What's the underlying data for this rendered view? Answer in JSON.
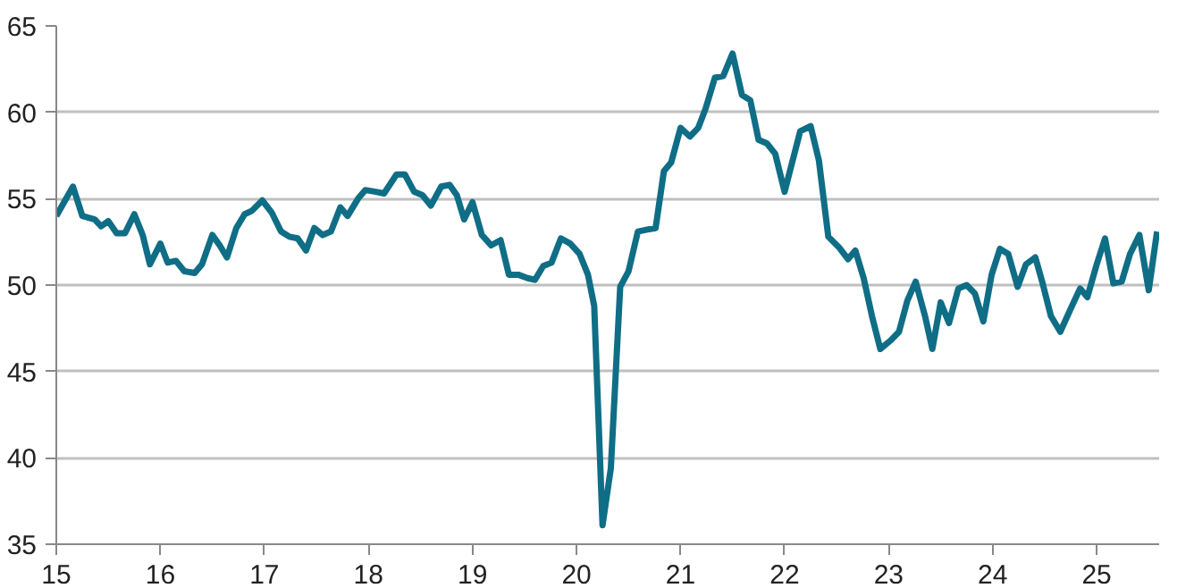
{
  "chart_data": {
    "type": "line",
    "xlim": [
      15,
      25.6
    ],
    "xticks": [
      15,
      16,
      17,
      18,
      19,
      20,
      21,
      22,
      23,
      24,
      25
    ],
    "ylim": [
      35,
      65
    ],
    "yticks": [
      35,
      40,
      45,
      50,
      55,
      60,
      65
    ],
    "grid": "y",
    "marker": "none",
    "line_style": "solid",
    "series": [
      {
        "color": "#0f6e86",
        "x": [
          15.0,
          15.16,
          15.25,
          15.37,
          15.43,
          15.5,
          15.58,
          15.66,
          15.75,
          15.83,
          15.9,
          16.0,
          16.07,
          16.15,
          16.23,
          16.33,
          16.4,
          16.5,
          16.57,
          16.64,
          16.73,
          16.81,
          16.88,
          16.98,
          17.07,
          17.16,
          17.24,
          17.32,
          17.4,
          17.48,
          17.56,
          17.64,
          17.73,
          17.8,
          17.9,
          17.97,
          18.07,
          18.15,
          18.27,
          18.35,
          18.44,
          18.52,
          18.6,
          18.7,
          18.78,
          18.85,
          18.92,
          19.0,
          19.09,
          19.18,
          19.27,
          19.35,
          19.44,
          19.53,
          19.6,
          19.68,
          19.76,
          19.85,
          19.94,
          20.03,
          20.11,
          20.17,
          20.25,
          20.33,
          20.42,
          20.5,
          20.59,
          20.67,
          20.76,
          20.84,
          20.91,
          21.0,
          21.09,
          21.17,
          21.24,
          21.33,
          21.41,
          21.5,
          21.59,
          21.67,
          21.75,
          21.83,
          21.91,
          22.0,
          22.15,
          22.25,
          22.33,
          22.42,
          22.52,
          22.61,
          22.68,
          22.76,
          22.84,
          22.92,
          23.02,
          23.1,
          23.18,
          23.26,
          23.35,
          23.42,
          23.5,
          23.58,
          23.67,
          23.75,
          23.83,
          23.91,
          23.99,
          24.07,
          24.15,
          24.24,
          24.32,
          24.41,
          24.48,
          24.56,
          24.65,
          24.74,
          24.84,
          24.91,
          25.0,
          25.08,
          25.16,
          25.24,
          25.32,
          25.41,
          25.5,
          25.58
        ],
        "values": [
          54.0,
          55.7,
          54.0,
          53.8,
          53.4,
          53.7,
          53.0,
          53.0,
          54.1,
          52.9,
          51.2,
          52.4,
          51.3,
          51.4,
          50.8,
          50.7,
          51.2,
          52.9,
          52.3,
          51.6,
          53.3,
          54.1,
          54.3,
          54.9,
          54.2,
          53.1,
          52.8,
          52.7,
          52.0,
          53.3,
          52.9,
          53.1,
          54.5,
          54.0,
          55.0,
          55.5,
          55.4,
          55.3,
          56.4,
          56.4,
          55.4,
          55.2,
          54.6,
          55.7,
          55.8,
          55.2,
          53.8,
          54.8,
          52.9,
          52.3,
          52.6,
          50.6,
          50.6,
          50.4,
          50.3,
          51.1,
          51.3,
          52.7,
          52.4,
          51.8,
          50.6,
          48.8,
          36.1,
          39.4,
          49.9,
          50.8,
          53.1,
          53.2,
          53.3,
          56.6,
          57.1,
          59.1,
          58.6,
          59.1,
          60.2,
          62.0,
          62.1,
          63.4,
          61.0,
          60.7,
          58.4,
          58.2,
          57.6,
          55.4,
          58.9,
          59.2,
          57.2,
          52.8,
          52.2,
          51.5,
          52.0,
          50.4,
          48.2,
          46.3,
          46.8,
          47.3,
          49.1,
          50.2,
          48.2,
          46.3,
          49.0,
          47.8,
          49.8,
          50.0,
          49.5,
          47.9,
          50.6,
          52.1,
          51.8,
          49.9,
          51.2,
          51.6,
          50.1,
          48.2,
          47.3,
          48.5,
          49.8,
          49.3,
          51.2,
          52.7,
          50.1,
          50.2,
          51.8,
          52.9,
          49.7,
          53.1
        ]
      }
    ]
  }
}
